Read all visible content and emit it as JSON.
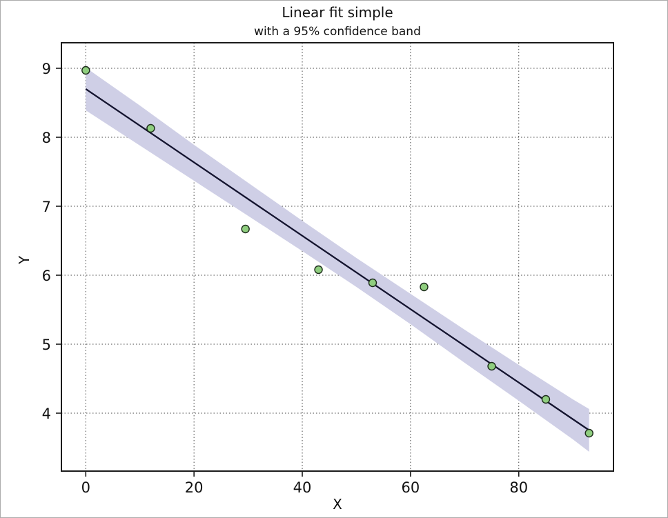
{
  "chart": {
    "title": "Linear fit simple",
    "subtitle": "with a 95% confidence band",
    "xlabel": "X",
    "ylabel": "Y"
  },
  "chart_data": {
    "type": "scatter",
    "title": "Linear fit simple",
    "subtitle": "with a 95% confidence band",
    "xlabel": "X",
    "ylabel": "Y",
    "xlim": [
      -4.5,
      97.5
    ],
    "ylim": [
      3.16,
      9.37
    ],
    "xticks": [
      0,
      20,
      40,
      60,
      80
    ],
    "yticks": [
      4,
      5,
      6,
      7,
      8,
      9
    ],
    "grid": "dotted",
    "legend": "none",
    "points": [
      [
        0,
        8.97
      ],
      [
        12,
        8.13
      ],
      [
        29.5,
        6.67
      ],
      [
        43,
        6.08
      ],
      [
        53,
        5.89
      ],
      [
        62.5,
        5.83
      ],
      [
        75,
        4.68
      ],
      [
        85,
        4.2
      ],
      [
        93,
        3.71
      ]
    ],
    "fit_line": {
      "slope": -0.0532,
      "intercept": 8.7,
      "x_start": 0,
      "x_end": 93
    },
    "confidence_band": {
      "level": "95%",
      "x": [
        0,
        10,
        20,
        30,
        40,
        50,
        60,
        70,
        80,
        90,
        93
      ],
      "upper": [
        9.01,
        8.46,
        7.89,
        7.34,
        6.79,
        6.25,
        5.73,
        5.21,
        4.7,
        4.2,
        4.06
      ],
      "lower": [
        8.39,
        7.88,
        7.37,
        6.86,
        6.35,
        5.83,
        5.29,
        4.73,
        4.18,
        3.62,
        3.44
      ]
    },
    "colors": {
      "marker_fill": "#8fce7f",
      "marker_edge": "#1c2b1a",
      "fit_line": "#13132e",
      "band": "#cfcfe6",
      "grid": "#444444",
      "spine": "#1a1a1a",
      "text": "#111111",
      "page_border": "#ababab"
    }
  }
}
